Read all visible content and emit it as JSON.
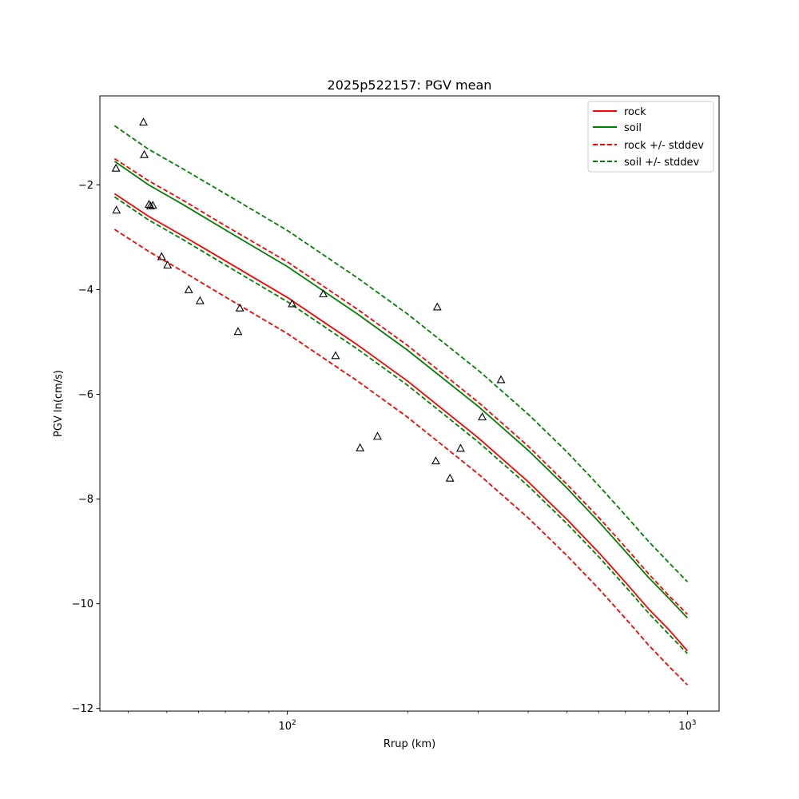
{
  "chart_data": {
    "type": "line",
    "title": "2025p522157: PGV mean",
    "xlabel": "Rrup (km)",
    "ylabel": "PGV ln(cm/s)",
    "xscale": "log",
    "xlim": [
      34,
      1200
    ],
    "ylim": [
      -12.05,
      -0.3
    ],
    "x_ticks": [
      {
        "value": 100,
        "base": "10",
        "exp": "2"
      },
      {
        "value": 1000,
        "base": "10",
        "exp": "3"
      }
    ],
    "y_ticks": [
      -12,
      -10,
      -8,
      -6,
      -4,
      -2
    ],
    "y_tick_labels": [
      "−12",
      "−10",
      "−8",
      "−6",
      "−4",
      "−2"
    ],
    "grid": false,
    "legend": {
      "position": "top-right",
      "entries": [
        {
          "label": "rock",
          "color": "#ff0000",
          "style": "solid"
        },
        {
          "label": "soil",
          "color": "#008000",
          "style": "solid"
        },
        {
          "label": "rock +/- stddev",
          "color": "#ff0000",
          "style": "dashed"
        },
        {
          "label": "soil +/- stddev",
          "color": "#008000",
          "style": "dashed"
        }
      ]
    },
    "series": [
      {
        "name": "rock",
        "color": "#ff0000",
        "style": "solid",
        "x": [
          37,
          45,
          55,
          70,
          100,
          150,
          200,
          300,
          400,
          500,
          600,
          700,
          800,
          900,
          1000
        ],
        "y": [
          -2.17,
          -2.6,
          -2.98,
          -3.45,
          -4.15,
          -5.06,
          -5.75,
          -6.83,
          -7.67,
          -8.39,
          -9.02,
          -9.59,
          -10.1,
          -10.5,
          -10.9
        ]
      },
      {
        "name": "soil",
        "color": "#008000",
        "style": "solid",
        "x": [
          37,
          45,
          55,
          70,
          100,
          150,
          200,
          300,
          400,
          500,
          600,
          700,
          800,
          900,
          1000
        ],
        "y": [
          -1.55,
          -2.0,
          -2.38,
          -2.86,
          -3.56,
          -4.47,
          -5.16,
          -6.23,
          -7.07,
          -7.79,
          -8.43,
          -9.0,
          -9.5,
          -9.9,
          -10.27
        ]
      },
      {
        "name": "rock + stddev",
        "legend": "rock +/- stddev",
        "color": "#ff0000",
        "style": "dashed",
        "x": [
          37,
          45,
          55,
          70,
          100,
          150,
          200,
          300,
          400,
          500,
          600,
          700,
          800,
          900,
          1000
        ],
        "y": [
          -1.5,
          -1.92,
          -2.3,
          -2.78,
          -3.47,
          -4.38,
          -5.07,
          -6.15,
          -6.99,
          -7.72,
          -8.35,
          -8.92,
          -9.43,
          -9.85,
          -10.2
        ]
      },
      {
        "name": "rock - stddev",
        "legend": "rock +/- stddev",
        "color": "#ff0000",
        "style": "dashed",
        "x": [
          37,
          45,
          55,
          70,
          100,
          150,
          200,
          300,
          400,
          500,
          600,
          700,
          800,
          900,
          1000
        ],
        "y": [
          -2.85,
          -3.27,
          -3.66,
          -4.14,
          -4.84,
          -5.75,
          -6.44,
          -7.52,
          -8.36,
          -9.08,
          -9.71,
          -10.28,
          -10.79,
          -11.2,
          -11.55
        ]
      },
      {
        "name": "soil + stddev",
        "legend": "soil +/- stddev",
        "color": "#008000",
        "style": "dashed",
        "x": [
          37,
          45,
          55,
          70,
          100,
          150,
          200,
          300,
          400,
          500,
          600,
          700,
          800,
          900,
          1000
        ],
        "y": [
          -0.87,
          -1.32,
          -1.7,
          -2.17,
          -2.87,
          -3.78,
          -4.47,
          -5.54,
          -6.38,
          -7.1,
          -7.74,
          -8.31,
          -8.81,
          -9.22,
          -9.58
        ]
      },
      {
        "name": "soil - stddev",
        "legend": "soil +/- stddev",
        "color": "#008000",
        "style": "dashed",
        "x": [
          37,
          45,
          55,
          70,
          100,
          150,
          200,
          300,
          400,
          500,
          600,
          700,
          800,
          900,
          1000
        ],
        "y": [
          -2.23,
          -2.67,
          -3.05,
          -3.53,
          -4.23,
          -5.14,
          -5.83,
          -6.91,
          -7.75,
          -8.47,
          -9.1,
          -9.67,
          -10.18,
          -10.59,
          -10.95
        ]
      }
    ],
    "observations": {
      "marker": "triangle",
      "x": [
        37.3,
        37.4,
        43.7,
        43.9,
        45.1,
        45.5,
        46.1,
        48.5,
        50.2,
        56.7,
        60.5,
        75.3,
        76.1,
        102.8,
        123,
        132,
        152,
        168,
        235,
        237,
        255,
        271,
        307,
        342
      ],
      "y": [
        -1.68,
        -2.48,
        -0.8,
        -1.42,
        -2.37,
        -2.4,
        -2.39,
        -3.37,
        -3.53,
        -4.0,
        -4.21,
        -4.8,
        -4.35,
        -4.27,
        -4.08,
        -5.26,
        -7.02,
        -6.8,
        -7.27,
        -4.33,
        -7.6,
        -7.03,
        -6.43,
        -5.72
      ]
    }
  }
}
